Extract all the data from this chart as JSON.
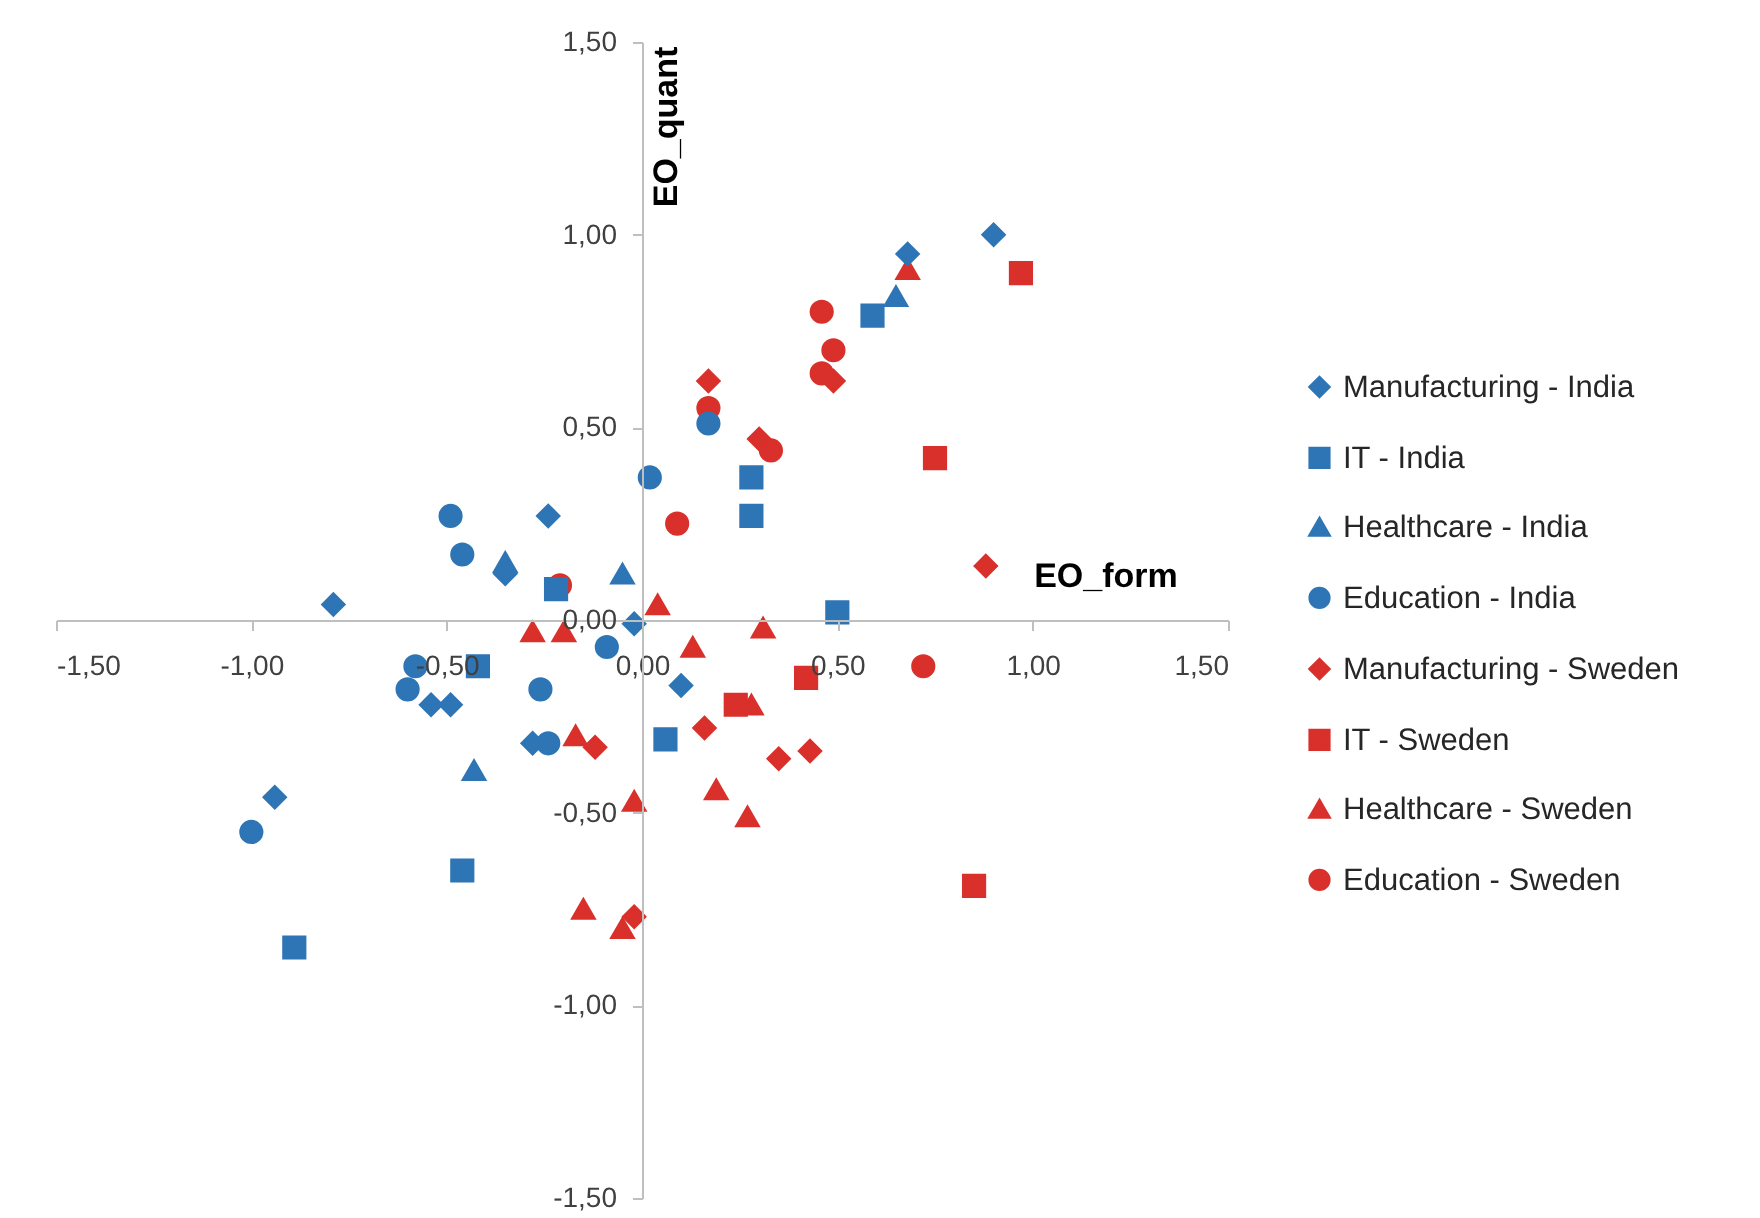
{
  "chart_data": {
    "type": "scatter",
    "xlabel": "EO_form",
    "ylabel": "EO_quant",
    "xlim": [
      -1.5,
      1.5
    ],
    "ylim": [
      -1.5,
      1.5
    ],
    "xticks": [
      {
        "value": -1.5,
        "label": "-1,50"
      },
      {
        "value": -1,
        "label": "-1,00"
      },
      {
        "value": -0.5,
        "label": "-0,50"
      },
      {
        "value": 0,
        "label": "0,00"
      },
      {
        "value": 0.5,
        "label": "0,50"
      },
      {
        "value": 1,
        "label": "1,00"
      },
      {
        "value": 1.5,
        "label": "1,50"
      }
    ],
    "yticks": [
      {
        "value": -1.5,
        "label": "-1,50"
      },
      {
        "value": -1,
        "label": "-1,00"
      },
      {
        "value": -0.5,
        "label": "-0,50"
      },
      {
        "value": 0,
        "label": "0,00"
      },
      {
        "value": 0.5,
        "label": "0,50"
      },
      {
        "value": 1,
        "label": "1,00"
      },
      {
        "value": 1.5,
        "label": "1,50"
      }
    ],
    "grid": false,
    "legend": "right",
    "series": [
      {
        "name": "Manufacturing - India",
        "color": "#2e75b6",
        "marker": "diamond",
        "x": [
          -0.79,
          -0.94,
          -0.54,
          -0.49,
          -0.24,
          -0.35,
          -0.28,
          -0.02,
          0.1,
          0.68,
          0.9
        ],
        "values": [
          0.04,
          -0.46,
          -0.22,
          -0.22,
          0.27,
          0.12,
          -0.32,
          -0.01,
          -0.17,
          0.95,
          1.0
        ]
      },
      {
        "name": "IT - India",
        "color": "#2e75b6",
        "marker": "square",
        "x": [
          -0.89,
          -0.46,
          -0.42,
          -0.22,
          0.06,
          0.28,
          0.28,
          0.5,
          0.59
        ],
        "values": [
          -0.85,
          -0.65,
          -0.12,
          0.08,
          -0.31,
          0.37,
          0.27,
          0.02,
          0.79
        ]
      },
      {
        "name": "Healthcare - India",
        "color": "#2e75b6",
        "marker": "triangle",
        "x": [
          -0.35,
          -0.43,
          -0.05,
          0.65
        ],
        "values": [
          0.15,
          -0.39,
          0.12,
          0.84
        ]
      },
      {
        "name": "Education - India",
        "color": "#2e75b6",
        "marker": "circle",
        "x": [
          -1.0,
          -0.49,
          -0.46,
          -0.58,
          -0.6,
          -0.26,
          -0.24,
          -0.09,
          0.02,
          0.17
        ],
        "values": [
          -0.55,
          0.27,
          0.17,
          -0.12,
          -0.18,
          -0.18,
          -0.32,
          -0.07,
          0.37,
          0.51
        ]
      },
      {
        "name": "Manufacturing - Sweden",
        "color": "#d9302b",
        "marker": "diamond",
        "x": [
          0.17,
          0.3,
          0.49,
          0.88,
          0.16,
          0.35,
          0.43,
          -0.12,
          -0.02
        ],
        "values": [
          0.62,
          0.47,
          0.62,
          0.14,
          -0.28,
          -0.36,
          -0.34,
          -0.33,
          -0.77
        ]
      },
      {
        "name": "IT - Sweden",
        "color": "#d9302b",
        "marker": "square",
        "x": [
          0.97,
          0.75,
          0.42,
          0.24,
          0.85
        ],
        "values": [
          0.9,
          0.42,
          -0.15,
          -0.22,
          -0.69
        ]
      },
      {
        "name": "Healthcare - Sweden",
        "color": "#d9302b",
        "marker": "triangle",
        "x": [
          0.68,
          0.04,
          0.31,
          0.13,
          0.28,
          0.19,
          0.27,
          -0.02,
          -0.17,
          -0.15,
          -0.05,
          -0.28,
          -0.2
        ],
        "values": [
          0.91,
          0.04,
          -0.02,
          -0.07,
          -0.22,
          -0.44,
          -0.51,
          -0.47,
          -0.3,
          -0.75,
          -0.8,
          -0.03,
          -0.03
        ]
      },
      {
        "name": "Education - Sweden",
        "color": "#d9302b",
        "marker": "circle",
        "x": [
          0.46,
          0.49,
          0.46,
          0.17,
          0.33,
          0.09,
          0.72,
          -0.21
        ],
        "values": [
          0.8,
          0.7,
          0.64,
          0.55,
          0.44,
          0.25,
          -0.12,
          0.09
        ]
      }
    ]
  }
}
